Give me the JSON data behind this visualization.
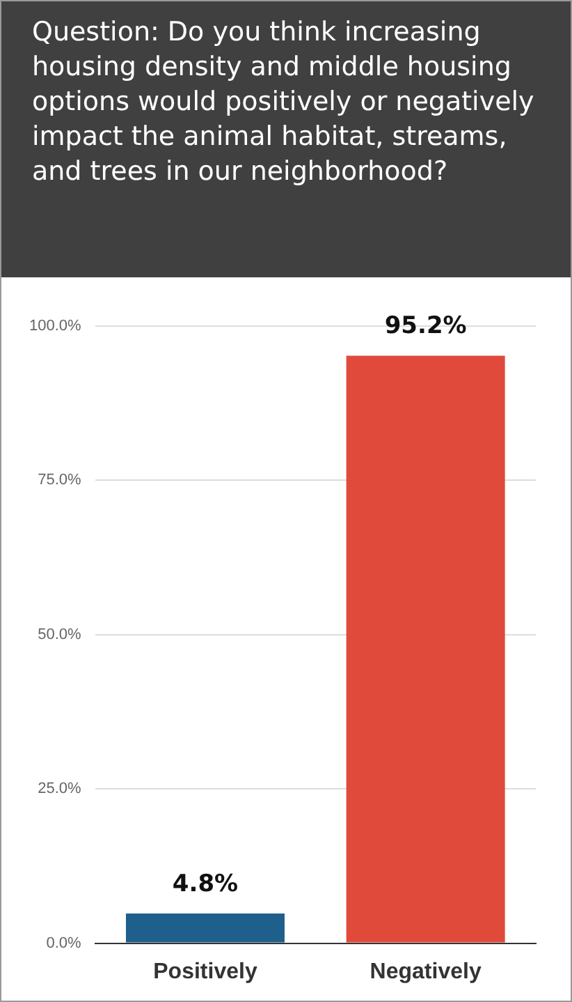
{
  "chart_data": {
    "type": "bar",
    "title": "Question: Do you think increasing housing density and middle housing options would positively or negatively impact the animal habitat, streams, and trees in our neighborhood?",
    "categories": [
      "Positively",
      "Negatively"
    ],
    "values": [
      4.8,
      95.2
    ],
    "colors": [
      "#1f5f8b",
      "#e04a3a"
    ],
    "value_labels": [
      "4.8%",
      "95.2%"
    ],
    "ylim": [
      0,
      100
    ],
    "yticks": [
      {
        "value": 0,
        "label": "0.0%"
      },
      {
        "value": 25,
        "label": "25.0%"
      },
      {
        "value": 50,
        "label": "50.0%"
      },
      {
        "value": 75,
        "label": "75.0%"
      },
      {
        "value": 100,
        "label": "100.0%"
      }
    ],
    "grid": "y",
    "legend": false
  }
}
